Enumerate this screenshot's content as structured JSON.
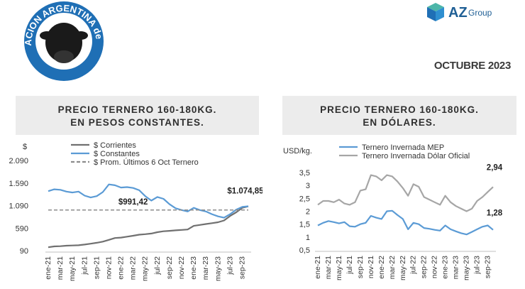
{
  "header": {
    "logo_left_text": "ASOCIACION ARGENTINA de ANGUS",
    "logo_right_text": "AZ",
    "logo_right_sub": "Group",
    "date": "OCTUBRE 2023"
  },
  "panels": {
    "left": {
      "title_line1": "PRECIO TERNERO 160-180KG.",
      "title_line2": "EN PESOS CONSTANTES."
    },
    "right": {
      "title_line1": "PRECIO TERNERO 160-180KG.",
      "title_line2": "EN DÓLARES."
    }
  },
  "chart_data": [
    {
      "type": "line",
      "ylabel": "$",
      "yticks": [
        "2.090",
        "1.590",
        "1.090",
        "590",
        "90"
      ],
      "ylim": [
        90,
        2090
      ],
      "x": [
        "ene-21",
        "feb-21",
        "mar-21",
        "abr-21",
        "may-21",
        "jun-21",
        "jul-21",
        "ago-21",
        "sep-21",
        "oct-21",
        "nov-21",
        "dic-21",
        "ene-22",
        "feb-22",
        "mar-22",
        "abr-22",
        "may-22",
        "jun-22",
        "jul-22",
        "ago-22",
        "sep-22",
        "oct-22",
        "nov-22",
        "dic-22",
        "ene-23",
        "feb-23",
        "mar-23",
        "abr-23",
        "may-23",
        "jun-23",
        "jul-23",
        "ago-23",
        "sep-23",
        "oct-23"
      ],
      "xtick_labels": [
        "ene-21",
        "mar-21",
        "may-21",
        "jul-21",
        "sep-21",
        "nov-21",
        "ene-22",
        "mar-22",
        "may-22",
        "jul-22",
        "sep-22",
        "nov-22",
        "ene-23",
        "mar-23",
        "may-23",
        "jul-23",
        "sep-23"
      ],
      "legend_position": "top",
      "series": [
        {
          "name": "$ Corrientes",
          "color": "#707070",
          "values": [
            165,
            185,
            190,
            200,
            205,
            210,
            225,
            245,
            265,
            290,
            330,
            370,
            380,
            400,
            420,
            445,
            455,
            470,
            500,
            520,
            530,
            540,
            550,
            560,
            640,
            660,
            680,
            700,
            720,
            760,
            860,
            940,
            1040,
            1075
          ]
        },
        {
          "name": "$ Constantes",
          "color": "#5b9bd5",
          "values": [
            1410,
            1450,
            1440,
            1400,
            1380,
            1400,
            1310,
            1270,
            1300,
            1390,
            1560,
            1540,
            1490,
            1500,
            1480,
            1430,
            1300,
            1200,
            1280,
            1240,
            1120,
            1030,
            990,
            960,
            1040,
            990,
            960,
            900,
            850,
            820,
            900,
            1000,
            1060,
            1075
          ]
        },
        {
          "name": "$ Prom. Últimos 6 Oct Ternero",
          "color": "#8c8c8c",
          "dashed": true,
          "constant": 991.42
        }
      ],
      "annotations": [
        {
          "label": "$991,42",
          "x": "mar-22",
          "y": 991.42
        },
        {
          "label": "$1.074,85",
          "x": "oct-23",
          "y": 1074.85
        }
      ]
    },
    {
      "type": "line",
      "ylabel": "USD/kg.",
      "yticks": [
        "3,5",
        "3",
        "2,5",
        "2",
        "1,5",
        "1",
        "0,5"
      ],
      "ylim": [
        0.5,
        3.5
      ],
      "x": [
        "ene-21",
        "feb-21",
        "mar-21",
        "abr-21",
        "may-21",
        "jun-21",
        "jul-21",
        "ago-21",
        "sep-21",
        "oct-21",
        "nov-21",
        "dic-21",
        "ene-22",
        "feb-22",
        "mar-22",
        "abr-22",
        "may-22",
        "jun-22",
        "jul-22",
        "ago-22",
        "sep-22",
        "oct-22",
        "nov-22",
        "dic-22",
        "ene-23",
        "feb-23",
        "mar-23",
        "abr-23",
        "may-23",
        "jun-23",
        "jul-23",
        "ago-23",
        "sep-23",
        "oct-23"
      ],
      "xtick_labels": [
        "ene-21",
        "mar-21",
        "may-21",
        "jul-21",
        "sep-21",
        "nov-21",
        "ene-22",
        "mar-22",
        "may-22",
        "jul-22",
        "sep-22",
        "nov-22",
        "ene-23",
        "mar-23",
        "may-23",
        "jul-23",
        "sep-23"
      ],
      "legend_position": "top",
      "series": [
        {
          "name": "Ternero Invernada MEP",
          "color": "#5b9bd5",
          "values": [
            1.45,
            1.55,
            1.62,
            1.58,
            1.53,
            1.58,
            1.42,
            1.4,
            1.5,
            1.55,
            1.82,
            1.75,
            1.7,
            2.0,
            2.02,
            1.85,
            1.7,
            1.3,
            1.55,
            1.5,
            1.35,
            1.32,
            1.28,
            1.25,
            1.45,
            1.3,
            1.22,
            1.15,
            1.1,
            1.2,
            1.3,
            1.4,
            1.45,
            1.28
          ]
        },
        {
          "name": "Ternero Invernada Dólar Oficial",
          "color": "#a6a6a6",
          "values": [
            2.25,
            2.4,
            2.4,
            2.35,
            2.45,
            2.3,
            2.25,
            2.35,
            2.8,
            2.85,
            3.4,
            3.35,
            3.2,
            3.4,
            3.35,
            3.15,
            2.9,
            2.6,
            3.05,
            2.95,
            2.55,
            2.45,
            2.35,
            2.25,
            2.6,
            2.35,
            2.2,
            2.1,
            2.0,
            2.1,
            2.4,
            2.55,
            2.75,
            2.94
          ]
        }
      ],
      "annotations": [
        {
          "label": "2,94",
          "x": "oct-23",
          "y": 2.94
        },
        {
          "label": "1,28",
          "x": "oct-23",
          "y": 1.28
        }
      ]
    }
  ]
}
